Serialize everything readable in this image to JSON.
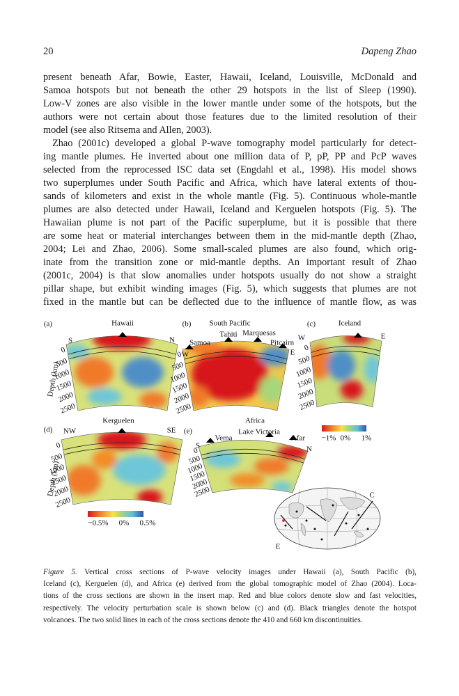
{
  "header": {
    "page_number": "20",
    "author": "Dapeng Zhao"
  },
  "paragraphs": [
    [
      "present beneath Afar, Bowie, Easter, Hawaii, Iceland, Louisville, McDonald and",
      "Samoa hotspots but not beneath the other 29 hotspots in the list of Sleep (1990).",
      "Low-V zones are also visible in the lower mantle under some of the hotspots, but the",
      "authors were not certain about those features due to the limited resolution of their",
      "model (see also Ritsema and Allen, 2003)."
    ],
    [
      "Zhao (2001c) developed a global P-wave tomography model particularly for detect-",
      "ing mantle plumes. He inverted about one million data of P, pP, PP and PcP waves",
      "selected from the reprocessed ISC data set (Engdahl et al., 1998). His model shows",
      "two superplumes under South Pacific and Africa, which have lateral extents of thou-",
      "sands of kilometers and exist in the whole mantle (Fig. 5). Continuous whole-mantle",
      "plumes are also detected under Hawaii, Iceland and Kerguelen hotspots (Fig. 5). The",
      "Hawaiian plume is not part of the Pacific superplume, but it is possible that there",
      "are some heat or material interchanges between them in the mid-mantle depth (Zhao,",
      "2004; Lei and Zhao, 2006). Some small-scaled plumes are also found, which orig-",
      "inate from the transition zone or mid-mantle depths. An important result of Zhao",
      "(2001c, 2004) is that slow anomalies under hotspots usually do not show a straight",
      "pillar shape, but exhibit winding images (Fig. 5), which suggests that plumes are not",
      "fixed in the mantle but can be deflected due to the influence of mantle flow, as was"
    ]
  ],
  "figure": {
    "panels": [
      {
        "label": "(a)",
        "title": "Hawaii",
        "left": "S",
        "right": "N",
        "depths": [
          "0",
          "500",
          "1000",
          "1500",
          "2000",
          "2500"
        ]
      },
      {
        "label": "(b)",
        "title": "South Pacific",
        "left": "W",
        "right": "E",
        "places": [
          "Samoa",
          "Tahiti",
          "Marquesas",
          "Pitcairn"
        ],
        "depths": [
          "0",
          "500",
          "1000",
          "1500",
          "2000",
          "2500"
        ]
      },
      {
        "label": "(c)",
        "title": "Iceland",
        "left": "W",
        "right": "E",
        "depths": [
          "0",
          "500",
          "1000",
          "1500",
          "2000",
          "2500"
        ]
      },
      {
        "label": "(d)",
        "title": "Kerguelen",
        "left": "NW",
        "right": "SE",
        "depths": [
          "0",
          "500",
          "1000",
          "1500",
          "2000",
          "2500"
        ]
      },
      {
        "label": "(e)",
        "title": "Africa",
        "left": "S",
        "right": "N",
        "places": [
          "Vema",
          "Lake Victoria",
          "Afar"
        ],
        "depths": [
          "0",
          "500",
          "1000",
          "1500",
          "2000",
          "2500"
        ]
      }
    ],
    "axis_label": "Depth (km)",
    "scales": [
      [
        "−1%",
        "0%",
        "1%"
      ],
      [
        "−0.5%",
        "0%",
        "0.5%"
      ]
    ],
    "map_labels": [
      "C",
      "E"
    ],
    "caption": {
      "label": "Figure 5.",
      "lines": [
        "Vertical cross sections of P-wave velocity images under Hawaii (a), South Pacific (b),",
        "Iceland (c), Kerguelen (d), and Africa (e) derived from the global tomographic model of Zhao (2004). Loca-",
        "tions of the cross sections are shown in the insert map. Red and blue colors denote slow and fast velocities,",
        "respectively. The velocity perturbation scale is shown below (c) and (d). Black triangles denote the hotspot",
        "volcanoes. The two solid lines in each of the cross sections denote the 410 and 660 km discontinuities."
      ]
    }
  }
}
